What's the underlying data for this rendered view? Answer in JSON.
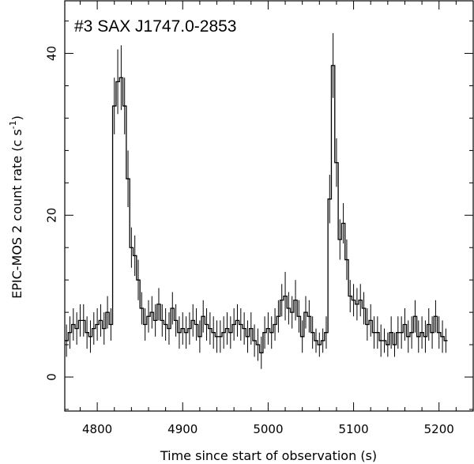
{
  "chart_data": {
    "type": "line",
    "style": "step-histogram-with-error-bars",
    "title": "#3 SAX J1747.0-2853",
    "xlabel": "Time since start of observation (s)",
    "ylabel_text": "EPIC-MOS 2 count rate (c s",
    "ylabel_sup": "-1",
    "ylabel_close": ")",
    "xlim": [
      4762,
      5240
    ],
    "ylim": [
      -4.2,
      46.5
    ],
    "xticks": [
      4800,
      4900,
      5000,
      5100,
      5200
    ],
    "yticks": [
      0,
      20,
      40
    ],
    "bin_width": 4,
    "x_start": 4762,
    "y": [
      4.5,
      5.5,
      6.5,
      6.0,
      7.0,
      7.0,
      5.5,
      5.0,
      6.0,
      6.5,
      7.0,
      6.0,
      8.0,
      6.5,
      33.5,
      36.5,
      37.0,
      33.5,
      24.5,
      16.0,
      15.0,
      12.0,
      8.5,
      6.5,
      7.5,
      8.0,
      7.0,
      9.0,
      7.0,
      6.5,
      6.0,
      8.5,
      7.0,
      5.5,
      6.0,
      5.5,
      6.0,
      7.0,
      6.5,
      5.0,
      7.5,
      6.5,
      6.0,
      5.5,
      5.0,
      5.0,
      5.5,
      6.0,
      5.5,
      6.5,
      7.0,
      6.5,
      6.0,
      5.0,
      6.0,
      4.5,
      4.0,
      3.0,
      5.5,
      6.0,
      5.5,
      6.5,
      7.5,
      9.5,
      10.0,
      8.5,
      8.0,
      9.5,
      7.5,
      5.0,
      8.0,
      7.5,
      5.5,
      4.5,
      4.0,
      4.5,
      5.5,
      22.0,
      38.5,
      26.5,
      17.0,
      19.0,
      14.5,
      10.0,
      9.5,
      9.0,
      9.5,
      8.5,
      6.5,
      7.0,
      5.5,
      5.5,
      4.5,
      4.5,
      4.0,
      5.5,
      4.0,
      5.5,
      5.5,
      6.5,
      5.0,
      5.5,
      7.5,
      5.0,
      5.5,
      5.0,
      6.5,
      5.5,
      7.5,
      5.5,
      5.0,
      4.5
    ],
    "error": [
      2.0,
      2.0,
      2.0,
      2.0,
      2.0,
      2.0,
      2.0,
      2.0,
      2.0,
      2.0,
      2.0,
      2.0,
      2.0,
      2.0,
      3.5,
      4.0,
      4.0,
      3.5,
      3.5,
      2.5,
      2.5,
      2.5,
      2.0,
      2.0,
      2.0,
      2.0,
      2.0,
      2.0,
      2.0,
      2.0,
      2.0,
      2.0,
      2.0,
      2.0,
      2.0,
      2.0,
      2.0,
      2.0,
      2.0,
      2.0,
      2.0,
      2.0,
      2.0,
      2.0,
      2.0,
      2.0,
      2.0,
      2.0,
      2.0,
      2.0,
      2.0,
      2.0,
      2.0,
      2.0,
      2.0,
      2.0,
      2.0,
      2.0,
      2.0,
      2.0,
      2.0,
      2.0,
      2.0,
      2.0,
      3.0,
      2.0,
      2.0,
      2.5,
      2.0,
      2.0,
      2.0,
      2.0,
      2.0,
      1.5,
      1.5,
      1.5,
      2.0,
      3.0,
      4.0,
      3.0,
      2.5,
      2.5,
      2.5,
      2.0,
      2.0,
      2.0,
      2.0,
      2.0,
      2.0,
      2.0,
      2.0,
      2.0,
      2.0,
      1.5,
      1.5,
      2.0,
      1.5,
      2.0,
      2.0,
      2.0,
      2.0,
      2.0,
      2.0,
      2.0,
      2.0,
      2.0,
      2.0,
      2.0,
      2.0,
      2.0,
      2.0,
      1.5
    ],
    "grid": false,
    "legend": "none"
  }
}
